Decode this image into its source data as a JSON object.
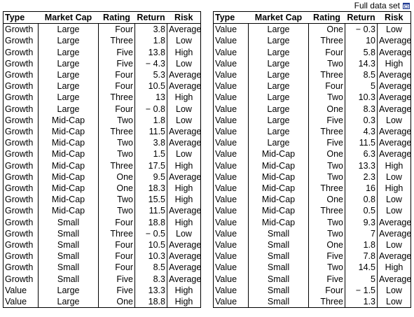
{
  "full_data_set_label": "Full data set",
  "columns": [
    "Type",
    "Market Cap",
    "Rating",
    "Return",
    "Risk"
  ],
  "left_rows": [
    [
      "Growth",
      "Large",
      "Four",
      "3.8",
      "Average"
    ],
    [
      "Growth",
      "Large",
      "Three",
      "1.8",
      "Low"
    ],
    [
      "Growth",
      "Large",
      "Five",
      "13.8",
      "High"
    ],
    [
      "Growth",
      "Large",
      "Five",
      "− 4.3",
      "Low"
    ],
    [
      "Growth",
      "Large",
      "Four",
      "5.3",
      "Average"
    ],
    [
      "Growth",
      "Large",
      "Four",
      "10.5",
      "Average"
    ],
    [
      "Growth",
      "Large",
      "Three",
      "13",
      "High"
    ],
    [
      "Growth",
      "Large",
      "Four",
      "− 0.8",
      "Low"
    ],
    [
      "Growth",
      "Mid-Cap",
      "Two",
      "1.8",
      "Low"
    ],
    [
      "Growth",
      "Mid-Cap",
      "Three",
      "11.5",
      "Average"
    ],
    [
      "Growth",
      "Mid-Cap",
      "Two",
      "3.8",
      "Average"
    ],
    [
      "Growth",
      "Mid-Cap",
      "Two",
      "1.5",
      "Low"
    ],
    [
      "Growth",
      "Mid-Cap",
      "Three",
      "17.5",
      "High"
    ],
    [
      "Growth",
      "Mid-Cap",
      "One",
      "9.5",
      "Average"
    ],
    [
      "Growth",
      "Mid-Cap",
      "One",
      "18.3",
      "High"
    ],
    [
      "Growth",
      "Mid-Cap",
      "Two",
      "15.5",
      "High"
    ],
    [
      "Growth",
      "Mid-Cap",
      "Two",
      "11.5",
      "Average"
    ],
    [
      "Growth",
      "Small",
      "Four",
      "18.8",
      "High"
    ],
    [
      "Growth",
      "Small",
      "Three",
      "− 0.5",
      "Low"
    ],
    [
      "Growth",
      "Small",
      "Four",
      "10.5",
      "Average"
    ],
    [
      "Growth",
      "Small",
      "Four",
      "10.3",
      "Average"
    ],
    [
      "Growth",
      "Small",
      "Four",
      "8.5",
      "Average"
    ],
    [
      "Growth",
      "Small",
      "Five",
      "8.3",
      "Average"
    ],
    [
      "Value",
      "Large",
      "Five",
      "13.3",
      "High"
    ],
    [
      "Value",
      "Large",
      "One",
      "18.8",
      "High"
    ]
  ],
  "right_rows": [
    [
      "Value",
      "Large",
      "One",
      "− 0.3",
      "Low"
    ],
    [
      "Value",
      "Large",
      "Three",
      "10",
      "Average"
    ],
    [
      "Value",
      "Large",
      "Four",
      "5.8",
      "Average"
    ],
    [
      "Value",
      "Large",
      "Two",
      "14.3",
      "High"
    ],
    [
      "Value",
      "Large",
      "Three",
      "8.5",
      "Average"
    ],
    [
      "Value",
      "Large",
      "Four",
      "5",
      "Average"
    ],
    [
      "Value",
      "Large",
      "Two",
      "10.3",
      "Average"
    ],
    [
      "Value",
      "Large",
      "One",
      "8.3",
      "Average"
    ],
    [
      "Value",
      "Large",
      "Five",
      "0.3",
      "Low"
    ],
    [
      "Value",
      "Large",
      "Three",
      "4.3",
      "Average"
    ],
    [
      "Value",
      "Large",
      "Five",
      "11.5",
      "Average"
    ],
    [
      "Value",
      "Mid-Cap",
      "One",
      "6.3",
      "Average"
    ],
    [
      "Value",
      "Mid-Cap",
      "Two",
      "13.3",
      "High"
    ],
    [
      "Value",
      "Mid-Cap",
      "Two",
      "2.3",
      "Low"
    ],
    [
      "Value",
      "Mid-Cap",
      "Three",
      "16",
      "High"
    ],
    [
      "Value",
      "Mid-Cap",
      "One",
      "0.8",
      "Low"
    ],
    [
      "Value",
      "Mid-Cap",
      "Three",
      "0.5",
      "Low"
    ],
    [
      "Value",
      "Mid-Cap",
      "Two",
      "9.3",
      "Average"
    ],
    [
      "Value",
      "Small",
      "Two",
      "7",
      "Average"
    ],
    [
      "Value",
      "Small",
      "One",
      "1.8",
      "Low"
    ],
    [
      "Value",
      "Small",
      "Five",
      "7.8",
      "Average"
    ],
    [
      "Value",
      "Small",
      "Two",
      "14.5",
      "High"
    ],
    [
      "Value",
      "Small",
      "Five",
      "5",
      "Average"
    ],
    [
      "Value",
      "Small",
      "Four",
      "− 1.5",
      "Low"
    ],
    [
      "Value",
      "Small",
      "Three",
      "1.3",
      "Low"
    ]
  ],
  "icons": {
    "expand": "expand-window-icon"
  },
  "colors": {
    "border": "#000000",
    "background": "#ffffff",
    "icon": "#1f3a93"
  }
}
